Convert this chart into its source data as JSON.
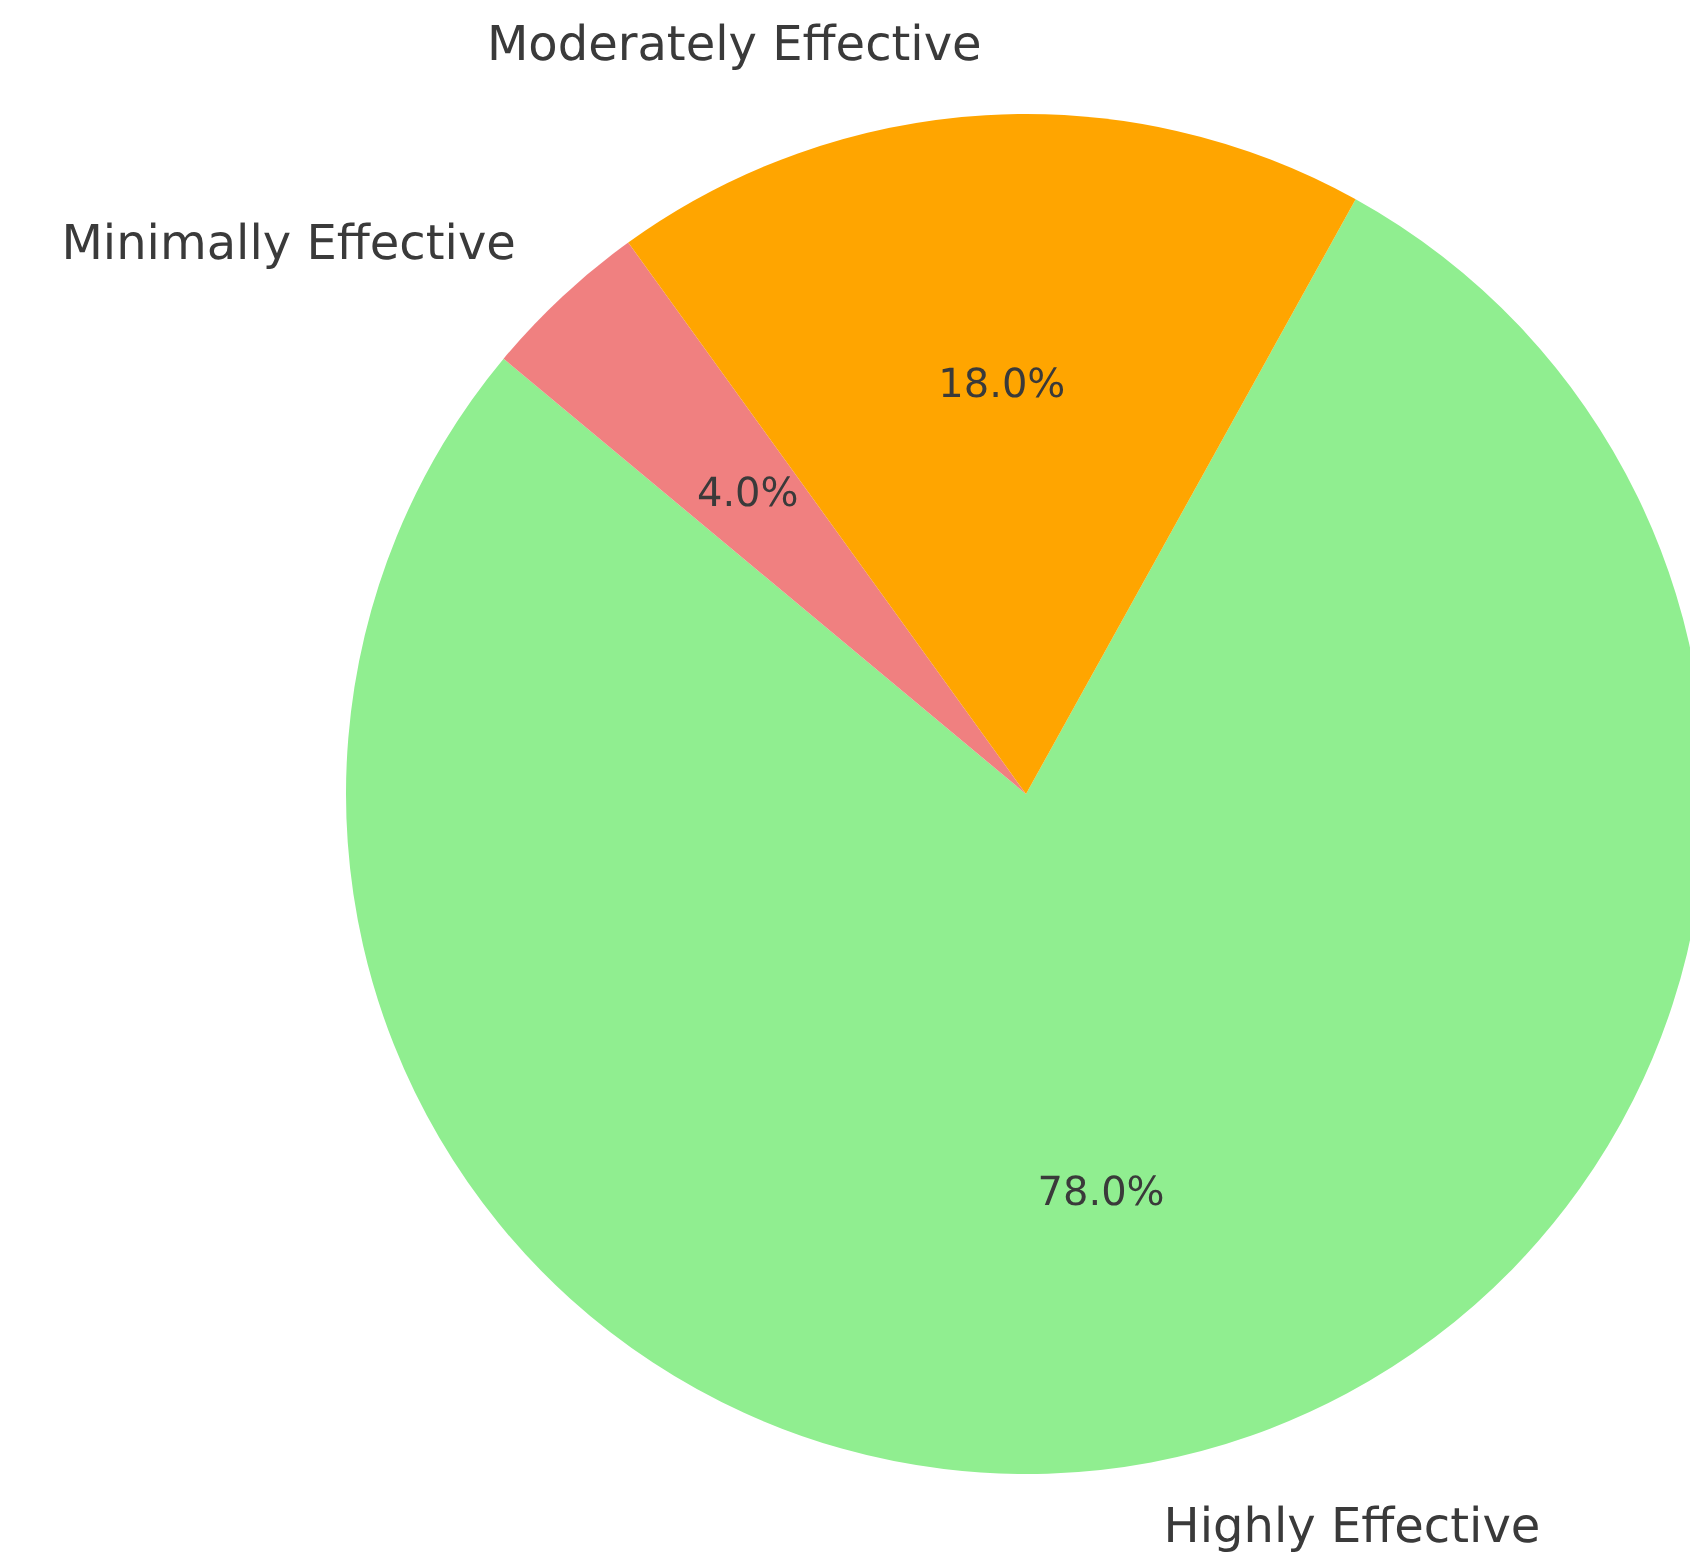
{
  "chart_data": {
    "type": "pie",
    "categories": [
      "Highly Effective",
      "Minimally Effective",
      "Moderately Effective"
    ],
    "values": [
      78,
      4,
      18
    ],
    "colors": [
      "#90ee90",
      "#f08080",
      "#ffa500"
    ],
    "value_labels": [
      "78.0%",
      "4.0%",
      "18.0%"
    ],
    "legend": false
  }
}
